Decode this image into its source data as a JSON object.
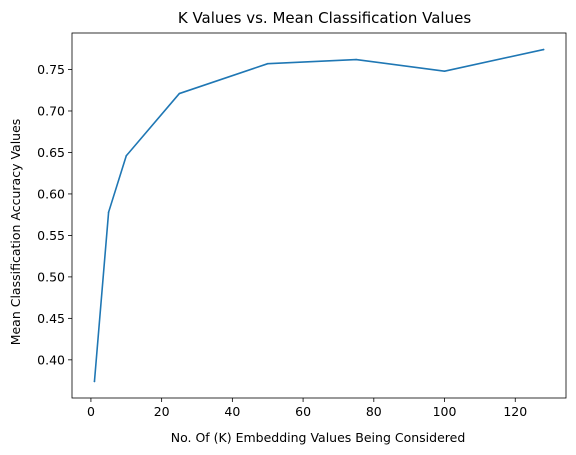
{
  "chart_data": {
    "type": "line",
    "title": "K Values vs. Mean Classification Values",
    "xlabel": "No. Of (K) Embedding Values Being Considered",
    "ylabel": "Mean Classification Accuracy Values",
    "x": [
      1,
      5,
      10,
      25,
      50,
      75,
      100,
      128
    ],
    "series": [
      {
        "values": [
          0.374,
          0.578,
          0.646,
          0.721,
          0.757,
          0.762,
          0.748,
          0.774
        ],
        "color": "#1f77b4"
      }
    ],
    "xlim": [
      -5.35,
      134.35
    ],
    "ylim": [
      0.354,
      0.794
    ],
    "xticks": [
      0,
      20,
      40,
      60,
      80,
      100,
      120
    ],
    "yticks": [
      0.4,
      0.45,
      0.5,
      0.55,
      0.6,
      0.65,
      0.7,
      0.75
    ],
    "ytick_labels": [
      "0.40",
      "0.45",
      "0.50",
      "0.55",
      "0.60",
      "0.65",
      "0.70",
      "0.75"
    ],
    "grid": false,
    "legend": "none"
  }
}
